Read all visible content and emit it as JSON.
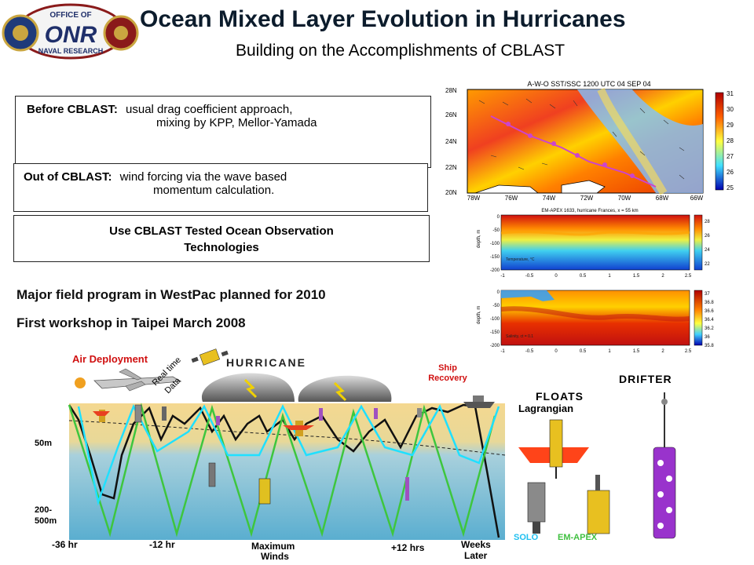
{
  "header": {
    "title": "Ocean Mixed Layer Evolution in Hurricanes",
    "subtitle": "Building on the Accomplishments of CBLAST"
  },
  "logo": {
    "top_text": "OFFICE OF",
    "main_text": "ONR",
    "bottom_text": "NAVAL RESEARCH"
  },
  "boxes": {
    "before_label": "Before CBLAST:",
    "before_text1": "usual drag coefficient approach,",
    "before_text2": "mixing by KPP, Mellor-Yamada",
    "out_label": "Out of CBLAST:",
    "out_text1": "wind forcing via the wave based",
    "out_text2": "momentum calculation.",
    "use_text1": "Use CBLAST Tested Ocean Observation",
    "use_text2": "Technologies"
  },
  "bullets": {
    "line1": "Major field program in WestPac planned for 2010",
    "line2": "First workshop in Taipei March 2008"
  },
  "map": {
    "title": "A-W-O SST/SSC  1200 UTC 04 SEP 04",
    "lat_labels": [
      "28N",
      "26N",
      "24N",
      "22N",
      "20N"
    ],
    "lon_labels": [
      "78W",
      "76W",
      "74W",
      "72W",
      "70W",
      "68W",
      "66W"
    ],
    "colorbar": [
      "31",
      "30",
      "29",
      "28",
      "27",
      "26",
      "25"
    ]
  },
  "profile1": {
    "title": "EM-APEX 1633, hurricane Frances, x = 55 km",
    "ylabel": "depth, m",
    "yticks": [
      "0",
      "-50",
      "-100",
      "-150",
      "-200"
    ],
    "xticks": [
      "-1",
      "-0.5",
      "0",
      "0.5",
      "1",
      "1.5",
      "2",
      "2.5"
    ],
    "colorbar": [
      "28",
      "26",
      "24",
      "22"
    ],
    "note": "Temperature, °C"
  },
  "profile2": {
    "ylabel": "depth, m",
    "yticks": [
      "0",
      "-50",
      "-100",
      "-150",
      "-200"
    ],
    "xticks": [
      "-1",
      "-0.5",
      "0",
      "0.5",
      "1",
      "1.5",
      "2",
      "2.5"
    ],
    "colorbar": [
      "37",
      "36.8",
      "36.6",
      "36.4",
      "36.2",
      "36",
      "35.8"
    ],
    "note": "Salinity, ct = 0.1"
  },
  "diagram": {
    "air_deployment": "Air Deployment",
    "realtime": "Real time",
    "data": "Data",
    "hurricane": "HURRICANE",
    "ship_recovery_1": "Ship",
    "ship_recovery_2": "Recovery",
    "depth_50": "50m",
    "depth_200a": "200-",
    "depth_200b": "500m",
    "time_1": "-36 hr",
    "time_2": "-12 hr",
    "time_3a": "Maximum",
    "time_3b": "Winds",
    "time_4": "+12 hrs",
    "time_5a": "Weeks",
    "time_5b": "Later",
    "floats": "FLOATS",
    "lagrangian": "Lagrangian",
    "drifter": "DRIFTER",
    "solo": "SOLO",
    "emapex": "EM-APEX"
  }
}
